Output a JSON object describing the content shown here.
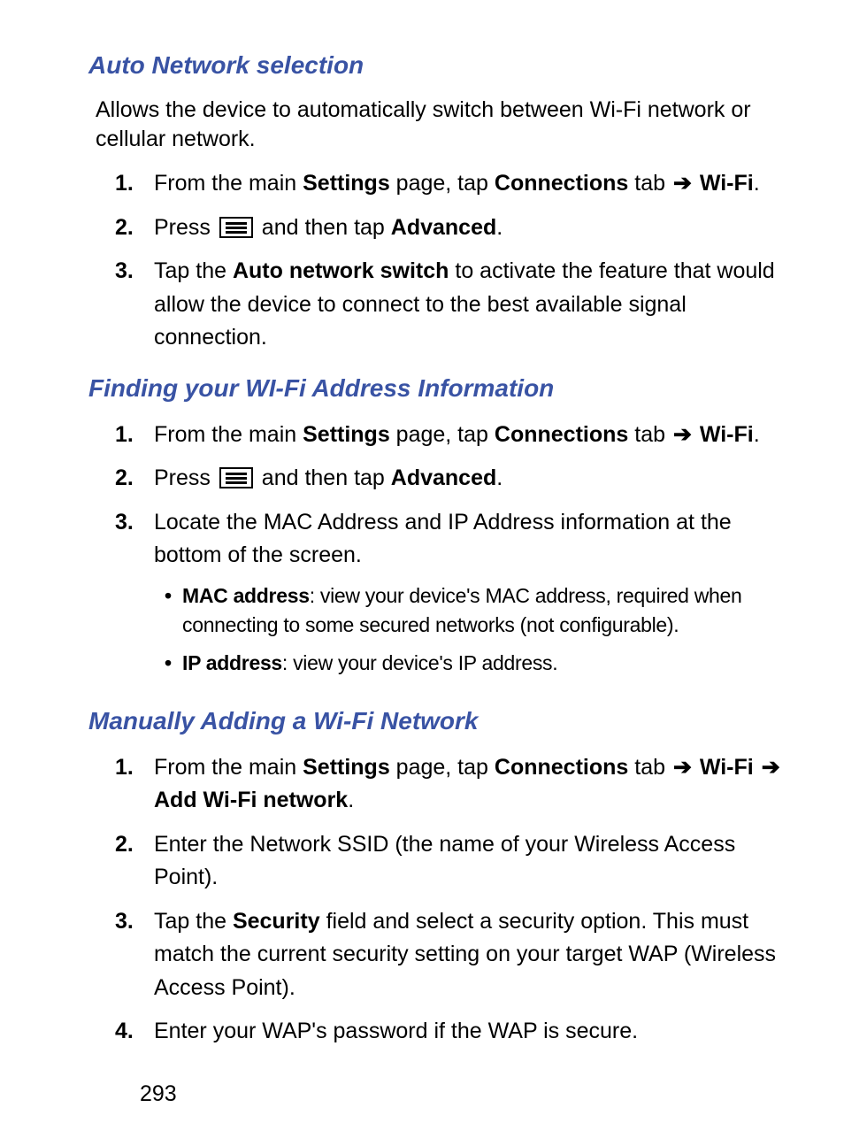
{
  "colors": {
    "heading": "#3953a4",
    "text": "#000000",
    "background": "#ffffff"
  },
  "typography": {
    "heading_fontsize": 28,
    "body_fontsize": 25,
    "sub_fontsize": 23,
    "heading_style": "bold italic"
  },
  "page_number": "293",
  "sections": [
    {
      "heading": "Auto Network selection",
      "intro": "Allows the device to automatically switch between Wi-Fi network or cellular network.",
      "steps": [
        {
          "n": "1.",
          "parts": [
            "From the main ",
            {
              "b": "Settings"
            },
            " page, tap ",
            {
              "b": "Connections"
            },
            " tab ",
            {
              "arrow": "➔"
            },
            " ",
            {
              "b": "Wi-Fi"
            },
            "."
          ]
        },
        {
          "n": "2.",
          "parts": [
            "Press ",
            {
              "icon": "menu"
            },
            " and then tap ",
            {
              "b": "Advanced"
            },
            "."
          ]
        },
        {
          "n": "3.",
          "parts": [
            "Tap the ",
            {
              "b": "Auto network switch"
            },
            " to activate the feature that would allow the device to connect to the best available signal connection."
          ]
        }
      ]
    },
    {
      "heading": "Finding your WI-Fi Address Information",
      "steps": [
        {
          "n": "1.",
          "parts": [
            "From the main ",
            {
              "b": "Settings"
            },
            " page, tap ",
            {
              "b": "Connections"
            },
            " tab ",
            {
              "arrow": "➔"
            },
            " ",
            {
              "b": "Wi-Fi"
            },
            "."
          ]
        },
        {
          "n": "2.",
          "parts": [
            "Press ",
            {
              "icon": "menu"
            },
            " and then tap ",
            {
              "b": "Advanced"
            },
            "."
          ]
        },
        {
          "n": "3.",
          "parts": [
            "Locate the MAC Address and IP Address information at the bottom of the screen."
          ],
          "sub": [
            {
              "parts": [
                {
                  "b": "MAC address"
                },
                ": view your device's MAC address, required when connecting to some secured networks (not configurable)."
              ],
              "condensed": true
            },
            {
              "parts": [
                {
                  "b": "IP address"
                },
                ": view your device's IP address."
              ],
              "condensed": true
            }
          ]
        }
      ]
    },
    {
      "heading": "Manually Adding a Wi-Fi Network",
      "steps": [
        {
          "n": "1.",
          "parts": [
            "From the main ",
            {
              "b": "Settings"
            },
            " page, tap ",
            {
              "b": "Connections"
            },
            " tab ",
            {
              "arrow": "➔"
            },
            " ",
            {
              "b": "Wi-Fi"
            },
            " ",
            {
              "arrow": "➔"
            },
            " ",
            {
              "b": "Add Wi-Fi network"
            },
            "."
          ]
        },
        {
          "n": "2.",
          "parts": [
            "Enter the Network SSID (the name of your Wireless Access Point)."
          ]
        },
        {
          "n": "3.",
          "parts": [
            "Tap the ",
            {
              "b": "Security"
            },
            " field and select a security option. This must match the current security setting on your target WAP (Wireless Access Point)."
          ]
        },
        {
          "n": "4.",
          "parts": [
            "Enter your WAP's password if the WAP is secure."
          ]
        }
      ]
    }
  ]
}
